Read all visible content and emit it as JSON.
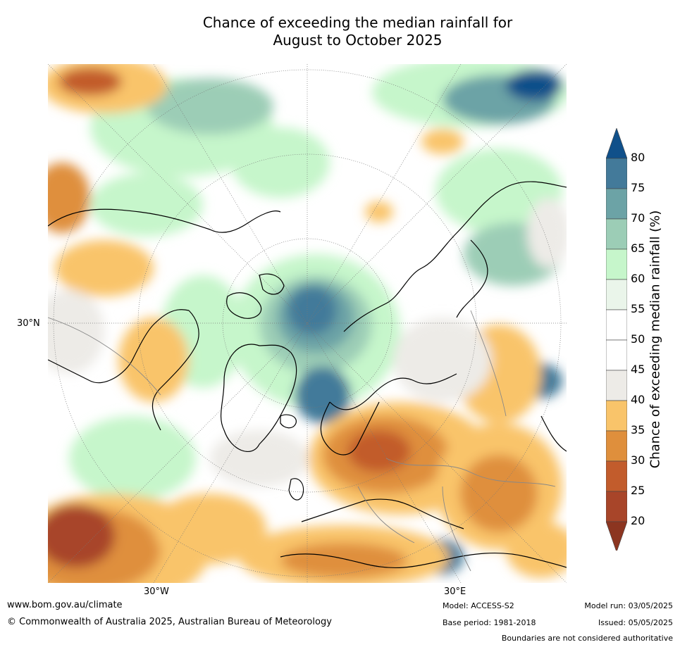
{
  "title_line1": "Chance of exceeding the median rainfall for",
  "title_line2": "August to October 2025",
  "map": {
    "lon_labels": [
      "30°W",
      "30°E"
    ],
    "lat_labels": [
      "30°N"
    ]
  },
  "colorbar": {
    "label": "Chance of exceeding median rainfall (%)",
    "ticks": [
      "80",
      "75",
      "70",
      "65",
      "60",
      "55",
      "50",
      "45",
      "40",
      "35",
      "30",
      "25",
      "20"
    ],
    "colors": [
      "#10508a",
      "#437a9a",
      "#6ca3a6",
      "#9ccdb6",
      "#c6f6cb",
      "#eaf5ea",
      "#ffffff",
      "#ffffff",
      "#edebe7",
      "#f9c46a",
      "#df8f3c",
      "#c25c2c",
      "#a84529",
      "#8c3520"
    ]
  },
  "footer": {
    "website": "www.bom.gov.au/climate",
    "copyright": "© Commonwealth of Australia 2025, Australian Bureau of Meteorology",
    "model": "Model: ACCESS-S2",
    "base_period": "Base period: 1981-2018",
    "model_run": "Model run: 03/05/2025",
    "issued": "Issued: 05/05/2025",
    "disclaimer": "Boundaries are not considered authoritative"
  }
}
